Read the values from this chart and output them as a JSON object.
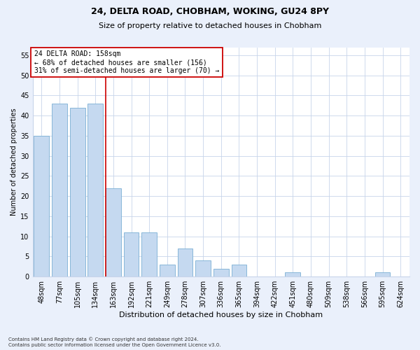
{
  "title1": "24, DELTA ROAD, CHOBHAM, WOKING, GU24 8PY",
  "title2": "Size of property relative to detached houses in Chobham",
  "xlabel": "Distribution of detached houses by size in Chobham",
  "ylabel": "Number of detached properties",
  "categories": [
    "48sqm",
    "77sqm",
    "105sqm",
    "134sqm",
    "163sqm",
    "192sqm",
    "221sqm",
    "249sqm",
    "278sqm",
    "307sqm",
    "336sqm",
    "365sqm",
    "394sqm",
    "422sqm",
    "451sqm",
    "480sqm",
    "509sqm",
    "538sqm",
    "566sqm",
    "595sqm",
    "624sqm"
  ],
  "values": [
    35,
    43,
    42,
    43,
    22,
    11,
    11,
    3,
    7,
    4,
    2,
    3,
    0,
    0,
    1,
    0,
    0,
    0,
    0,
    1,
    0
  ],
  "bar_color": "#c5d9f0",
  "bar_edge_color": "#7aafd4",
  "vline_x_index": 4,
  "vline_color": "#cc0000",
  "annotation_text": "24 DELTA ROAD: 158sqm\n← 68% of detached houses are smaller (156)\n31% of semi-detached houses are larger (70) →",
  "annotation_box_color": "#ffffff",
  "annotation_box_edge": "#cc0000",
  "ylim": [
    0,
    57
  ],
  "yticks": [
    0,
    5,
    10,
    15,
    20,
    25,
    30,
    35,
    40,
    45,
    50,
    55
  ],
  "footnote1": "Contains HM Land Registry data © Crown copyright and database right 2024.",
  "footnote2": "Contains public sector information licensed under the Open Government Licence v3.0.",
  "bg_color": "#eaf0fb",
  "plot_bg_color": "#ffffff",
  "grid_color": "#c8d4ea",
  "title1_fontsize": 9,
  "title2_fontsize": 8,
  "xlabel_fontsize": 8,
  "ylabel_fontsize": 7,
  "tick_fontsize": 7,
  "annot_fontsize": 7,
  "footnote_fontsize": 5
}
